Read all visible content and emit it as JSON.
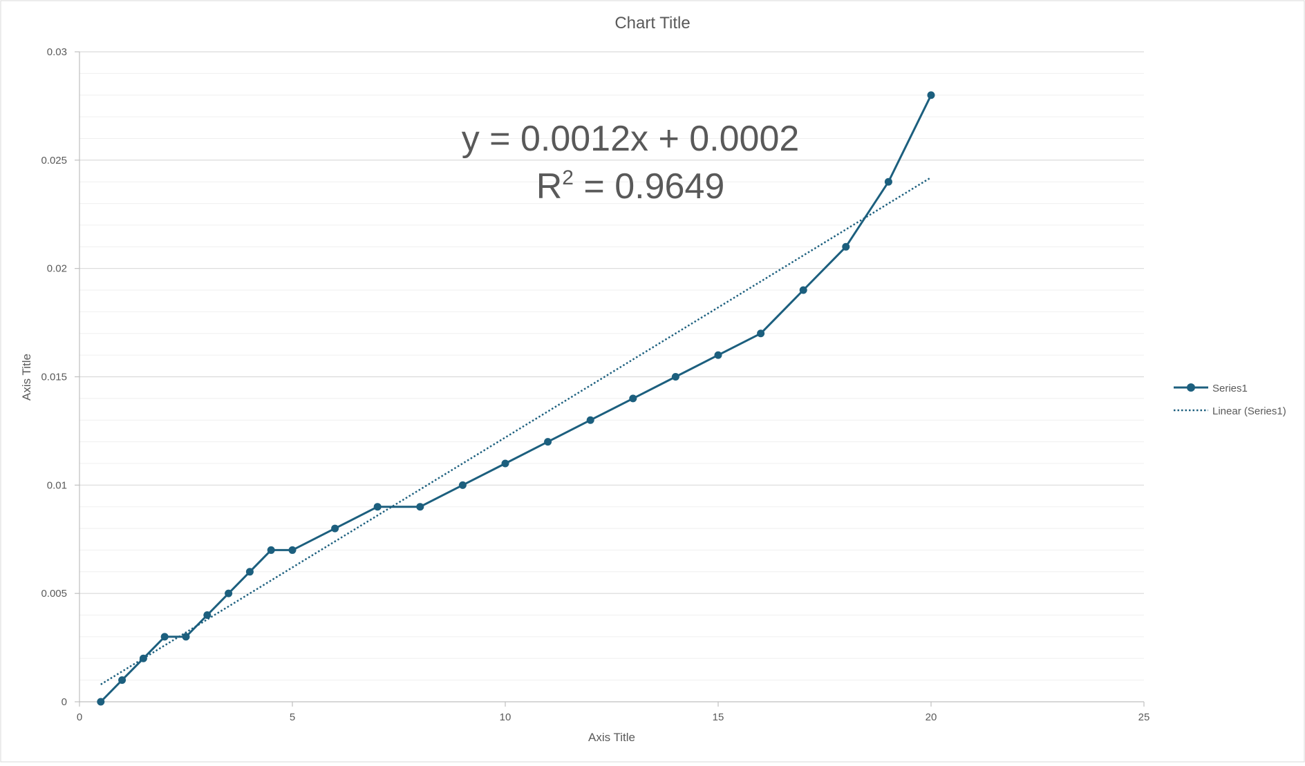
{
  "chart_data": {
    "type": "scatter",
    "title": "Chart Title",
    "xlabel": "Axis Title",
    "ylabel": "Axis Title",
    "xlim": [
      0,
      25
    ],
    "ylim": [
      0,
      0.03
    ],
    "x_ticks": [
      0,
      5,
      10,
      15,
      20,
      25
    ],
    "y_ticks": [
      0,
      0.005,
      0.01,
      0.015,
      0.02,
      0.025,
      0.03
    ],
    "x_tick_labels": [
      "0",
      "5",
      "10",
      "15",
      "20",
      "25"
    ],
    "y_tick_labels": [
      "0",
      "0.005",
      "0.01",
      "0.015",
      "0.02",
      "0.025",
      "0.03"
    ],
    "grid": "major and minor horizontal gridlines",
    "legend_position": "right",
    "series": [
      {
        "name": "Series1",
        "style": "line with markers",
        "color": "#1c5f7e",
        "x": [
          0.5,
          1,
          1.5,
          2,
          2.5,
          3,
          3.5,
          4,
          4.5,
          5,
          6,
          7,
          8,
          9,
          10,
          11,
          12,
          13,
          14,
          15,
          16,
          17,
          18,
          19,
          20
        ],
        "y": [
          0,
          0.001,
          0.002,
          0.003,
          0.003,
          0.004,
          0.005,
          0.006,
          0.007,
          0.007,
          0.008,
          0.009,
          0.009,
          0.01,
          0.011,
          0.012,
          0.013,
          0.014,
          0.015,
          0.016,
          0.017,
          0.019,
          0.021,
          0.024,
          0.028
        ]
      }
    ],
    "trendline": {
      "name": "Linear (Series1)",
      "type": "linear",
      "style": "dotted",
      "color": "#1c5f7e",
      "slope": 0.0012,
      "intercept": 0.0002,
      "x_range": [
        0.5,
        20
      ],
      "equation_text": "y = 0.0012x + 0.0002",
      "r2_label": "R",
      "r2_exponent": "2",
      "r2_value_text": " = 0.9649"
    },
    "colors": {
      "series": "#1c5f7e",
      "gridline": "#d9d9d9",
      "minor_gridline": "#efefef",
      "axis": "#bfbfbf",
      "text": "#595959"
    }
  }
}
